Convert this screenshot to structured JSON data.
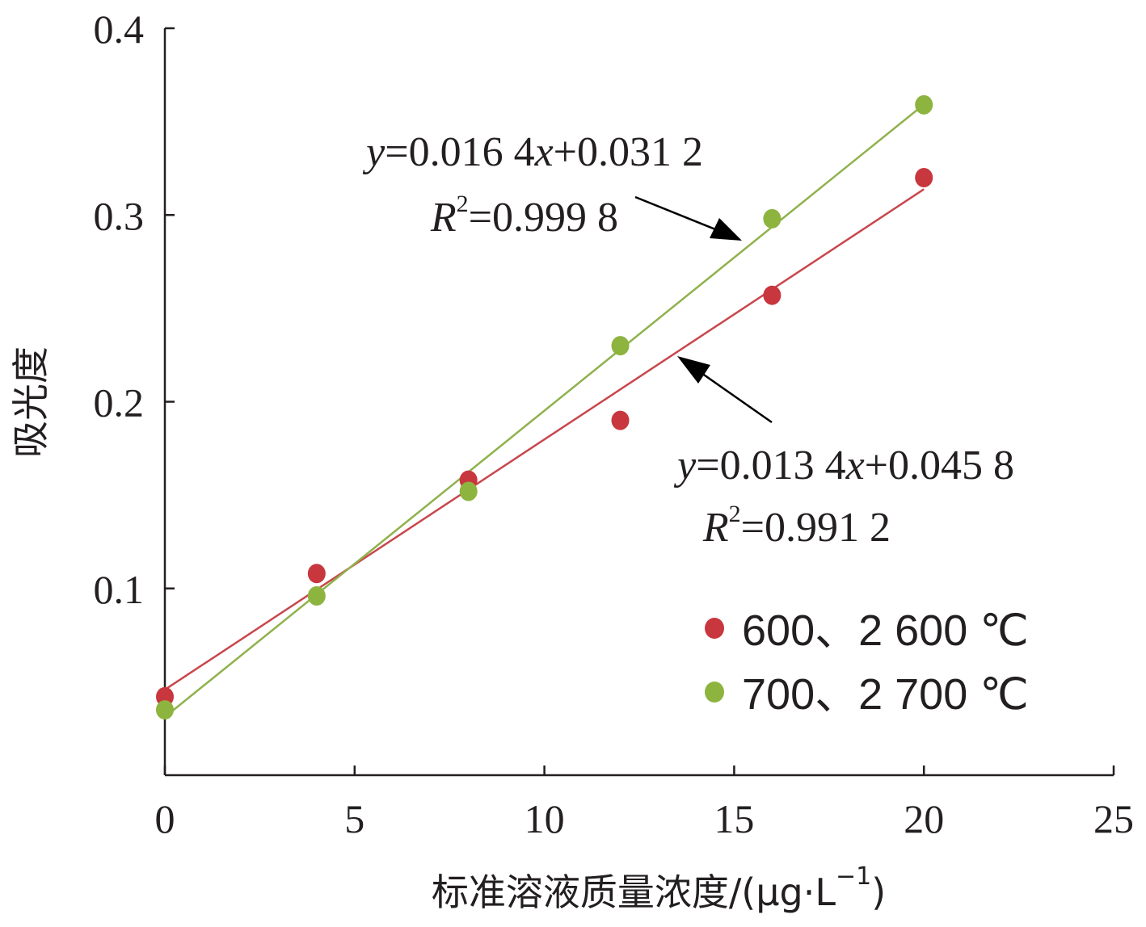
{
  "chart_data": {
    "type": "scatter",
    "xlabel": "标准溶液质量浓度/(μg·L−1)",
    "xlabel_parts": {
      "main": "标准溶液质量浓度/(μg·L",
      "sup": "−1",
      "close": ")"
    },
    "ylabel": "吸光度",
    "xlim": [
      0,
      25
    ],
    "ylim": [
      0,
      0.4
    ],
    "xticks": [
      "0",
      "5",
      "10",
      "15",
      "20",
      "25"
    ],
    "yticks": [
      "0.1",
      "0.2",
      "0.3",
      "0.4"
    ],
    "grid": false,
    "legend_position": "bottom-right",
    "series": [
      {
        "name": "600、2 600 ℃",
        "color": "#c8363e",
        "line_color": "#c8474d",
        "x": [
          0,
          4,
          8,
          12,
          16,
          20
        ],
        "y": [
          0.042,
          0.108,
          0.158,
          0.19,
          0.257,
          0.32
        ],
        "trendline": {
          "slope": 0.0134,
          "intercept": 0.0458
        },
        "equation": {
          "lhs": "y",
          "rhs": "=0.013 4",
          "var": "x",
          "tail": "+0.045 8"
        },
        "r2": {
          "label": "R",
          "exp": "2",
          "value": "=0.991 2"
        }
      },
      {
        "name": "700、2 700 ℃",
        "color": "#8db43e",
        "line_color": "#8fb24c",
        "x": [
          0,
          4,
          8,
          12,
          16,
          20
        ],
        "y": [
          0.035,
          0.096,
          0.152,
          0.23,
          0.298,
          0.359
        ],
        "trendline": {
          "slope": 0.0164,
          "intercept": 0.0312
        },
        "equation": {
          "lhs": "y",
          "rhs": "=0.016 4",
          "var": "x",
          "tail": "+0.031 2"
        },
        "r2": {
          "label": "R",
          "exp": "2",
          "value": "=0.999 8"
        }
      }
    ]
  }
}
